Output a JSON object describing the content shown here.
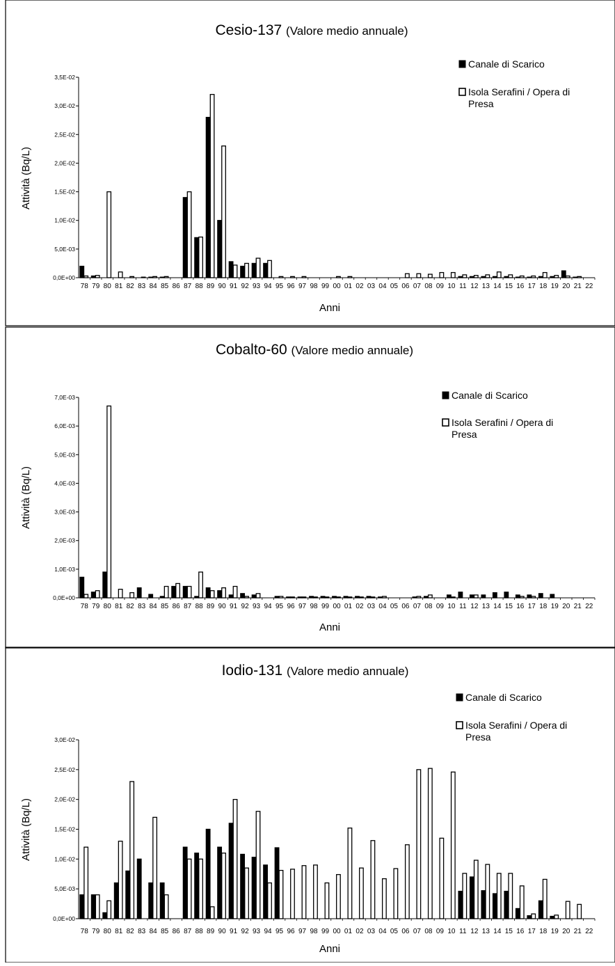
{
  "chart_data": [
    {
      "type": "bar",
      "title": "Cesio-137",
      "subtitle": "(Valore medio annuale)",
      "xlabel": "Anni",
      "ylabel": "Attività (Bq/L)",
      "ylim": [
        0,
        0.035
      ],
      "yticks": [
        "0,0E+00",
        "5,0E-03",
        "1,0E-02",
        "1,5E-02",
        "2,0E-02",
        "2,5E-02",
        "3,0E-02",
        "3,5E-02"
      ],
      "legend_position": "top-right",
      "categories": [
        "78",
        "79",
        "80",
        "81",
        "82",
        "83",
        "84",
        "85",
        "86",
        "87",
        "88",
        "89",
        "90",
        "91",
        "92",
        "93",
        "94",
        "95",
        "96",
        "97",
        "98",
        "99",
        "00",
        "01",
        "02",
        "03",
        "04",
        "05",
        "06",
        "07",
        "08",
        "09",
        "10",
        "11",
        "12",
        "13",
        "14",
        "15",
        "16",
        "17",
        "18",
        "19",
        "20",
        "21",
        "22"
      ],
      "series": [
        {
          "name": "Canale di Scarico",
          "fill": "#000000",
          "values": [
            0.002,
            0.0003,
            0,
            0,
            0,
            0,
            0.0001,
            0.0001,
            0,
            0.014,
            0.007,
            0.028,
            0.01,
            0.0028,
            0.002,
            0.0025,
            0.0025,
            0,
            0,
            0,
            0,
            0,
            0,
            0,
            0,
            0,
            0,
            0,
            0,
            0,
            0,
            0,
            0,
            0.0002,
            0.0002,
            0.0002,
            0.0002,
            0.0002,
            0.0001,
            0.0001,
            0.0002,
            0.0002,
            0.0012,
            0.0001,
            0
          ]
        },
        {
          "name": "Isola Serafini / Opera di Presa",
          "fill": "#ffffff",
          "values": [
            0.0003,
            0.0004,
            0.015,
            0.001,
            0.0002,
            0.0001,
            0.0002,
            0.0002,
            0,
            0.015,
            0.0071,
            0.032,
            0.023,
            0.0022,
            0.0025,
            0.0034,
            0.003,
            0.0002,
            0.0002,
            0.0002,
            0,
            0,
            0.0002,
            0.0002,
            0,
            0,
            0,
            0,
            0.0007,
            0.0007,
            0.0006,
            0.0009,
            0.0009,
            0.0005,
            0.0004,
            0.0005,
            0.001,
            0.0005,
            0.0003,
            0.0003,
            0.0009,
            0.0004,
            0.0003,
            0.0002,
            0
          ]
        }
      ]
    },
    {
      "type": "bar",
      "title": "Cobalto-60",
      "subtitle": "(Valore medio annuale)",
      "xlabel": "Anni",
      "ylabel": "Attività (Bq/L)",
      "ylim": [
        0,
        0.007
      ],
      "yticks": [
        "0,0E+00",
        "1,0E-03",
        "2,0E-03",
        "3,0E-03",
        "4,0E-03",
        "5,0E-03",
        "6,0E-03",
        "7,0E-03"
      ],
      "legend_position": "top-right",
      "categories": [
        "78",
        "79",
        "80",
        "81",
        "82",
        "83",
        "84",
        "85",
        "86",
        "87",
        "88",
        "89",
        "90",
        "91",
        "92",
        "93",
        "94",
        "95",
        "96",
        "97",
        "98",
        "99",
        "00",
        "01",
        "02",
        "03",
        "04",
        "05",
        "06",
        "07",
        "08",
        "09",
        "10",
        "11",
        "12",
        "13",
        "14",
        "15",
        "16",
        "17",
        "18",
        "19",
        "20",
        "21",
        "22"
      ],
      "series": [
        {
          "name": "Canale di Scarico",
          "fill": "#000000",
          "values": [
            0.00072,
            0.0002,
            0.0009,
            0,
            0,
            0.00035,
            0.00012,
            5e-05,
            0.0004,
            0.0004,
            5e-05,
            0.00035,
            0.00025,
            0.0001,
            0.00015,
            0.0001,
            0,
            5e-05,
            3e-05,
            3e-05,
            5e-05,
            5e-05,
            5e-05,
            5e-05,
            5e-05,
            5e-05,
            3e-05,
            0,
            0,
            3e-05,
            5e-05,
            0,
            0.0001,
            0.0002,
            0.0001,
            0.0001,
            0.00018,
            0.0002,
            0.0001,
            0.0001,
            0.00015,
            0.00012,
            0,
            0,
            0
          ]
        },
        {
          "name": "Isola Serafini / Opera di Presa",
          "fill": "#ffffff",
          "values": [
            0.00012,
            0.00025,
            0.0067,
            0.0003,
            0.00018,
            0,
            0,
            0.0004,
            0.0005,
            0.0004,
            0.0009,
            0.00025,
            0.00035,
            0.0004,
            5e-05,
            0.00015,
            0,
            5e-05,
            3e-05,
            3e-05,
            3e-05,
            3e-05,
            3e-05,
            3e-05,
            3e-05,
            3e-05,
            5e-05,
            0,
            0,
            5e-05,
            0.0001,
            0,
            3e-05,
            0,
            0.0001,
            0,
            0,
            0,
            5e-05,
            5e-05,
            0,
            0,
            0,
            0,
            0
          ]
        }
      ]
    },
    {
      "type": "bar",
      "title": "Iodio-131",
      "subtitle": "(Valore medio annuale)",
      "xlabel": "Anni",
      "ylabel": "Attività (Bq/L)",
      "ylim": [
        0,
        0.03
      ],
      "yticks": [
        "0,0E+00",
        "5,0E-03",
        "1,0E-02",
        "1,5E-02",
        "2,0E-02",
        "2,5E-02",
        "3,0E-02"
      ],
      "legend_position": "top-right",
      "categories": [
        "78",
        "79",
        "80",
        "81",
        "82",
        "83",
        "84",
        "85",
        "86",
        "87",
        "88",
        "89",
        "90",
        "91",
        "92",
        "93",
        "94",
        "95",
        "96",
        "97",
        "98",
        "99",
        "00",
        "01",
        "02",
        "03",
        "04",
        "05",
        "06",
        "07",
        "08",
        "09",
        "10",
        "11",
        "12",
        "13",
        "14",
        "15",
        "16",
        "17",
        "18",
        "19",
        "20",
        "21",
        "22"
      ],
      "series": [
        {
          "name": "Canale di Scarico",
          "fill": "#000000",
          "values": [
            0.004,
            0.004,
            0.001,
            0.006,
            0.008,
            0.01,
            0.006,
            0.006,
            0,
            0.012,
            0.011,
            0.015,
            0.012,
            0.016,
            0.0108,
            0.0103,
            0.009,
            0.0119,
            0,
            0,
            0,
            0,
            0,
            0,
            0,
            0,
            0,
            0,
            0,
            0,
            0,
            0,
            0,
            0.0046,
            0.007,
            0.0047,
            0.0042,
            0.0046,
            0.0017,
            0.0005,
            0.003,
            0.0004,
            0,
            0,
            0
          ]
        },
        {
          "name": "Isola Serafini / Opera di Presa",
          "fill": "#ffffff",
          "values": [
            0.012,
            0.004,
            0.003,
            0.013,
            0.023,
            0,
            0.017,
            0.004,
            0,
            0.01,
            0.01,
            0.002,
            0.011,
            0.02,
            0.0085,
            0.018,
            0.006,
            0.0081,
            0.0083,
            0.0089,
            0.009,
            0.006,
            0.0074,
            0.0152,
            0.0085,
            0.0131,
            0.0067,
            0.0084,
            0.0124,
            0.025,
            0.0252,
            0.0135,
            0.0246,
            0.0076,
            0.0098,
            0.0091,
            0.0076,
            0.0076,
            0.0055,
            0.0008,
            0.0066,
            0.0006,
            0.0029,
            0.0024,
            0
          ]
        }
      ]
    }
  ]
}
